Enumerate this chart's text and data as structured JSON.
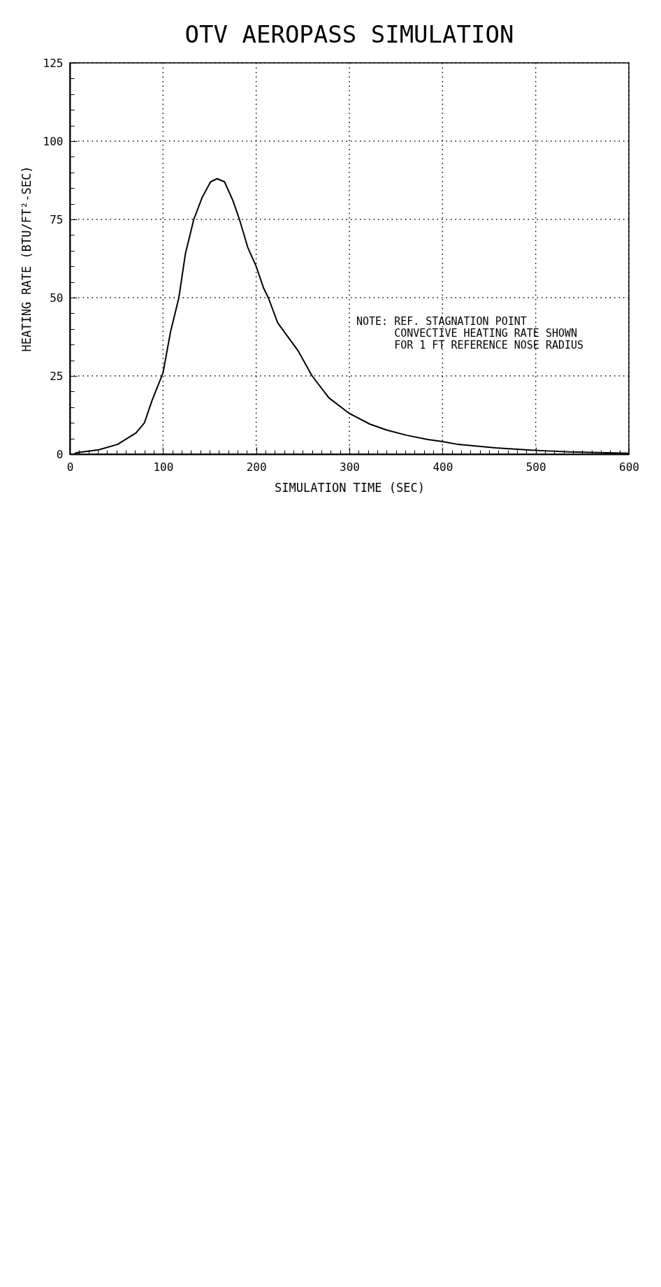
{
  "chart_data": {
    "type": "line",
    "title": "OTV AEROPASS SIMULATION",
    "xlabel": "SIMULATION TIME (SEC)",
    "ylabel": "HEATING RATE (BTU/FT²-SEC)",
    "annotations": [
      "NOTE: REF. STAGNATION POINT",
      "CONVECTIVE HEATING RATE SHOWN",
      "FOR 1 FT REFERENCE NOSE RADIUS"
    ],
    "xlim": [
      0,
      600
    ],
    "ylim": [
      0,
      125
    ],
    "xticks": [
      0,
      {
        "value": 10,
        "label": null
      },
      {
        "value": 20,
        "label": null
      },
      {
        "value": 30,
        "label": null
      },
      {
        "value": 40,
        "label": null
      },
      {
        "value": 50,
        "label": null
      },
      {
        "value": 60,
        "label": null
      },
      {
        "value": 70,
        "label": null
      },
      {
        "value": 80,
        "label": null
      },
      {
        "value": 90,
        "label": null
      },
      100,
      {
        "value": 110,
        "label": null
      },
      {
        "value": 120,
        "label": null
      },
      {
        "value": 130,
        "label": null
      },
      {
        "value": 140,
        "label": null
      },
      {
        "value": 150,
        "label": null
      },
      {
        "value": 160,
        "label": null
      },
      {
        "value": 170,
        "label": null
      },
      {
        "value": 180,
        "label": null
      },
      {
        "value": 190,
        "label": null
      },
      200,
      {
        "value": 210,
        "label": null
      },
      {
        "value": 220,
        "label": null
      },
      {
        "value": 230,
        "label": null
      },
      {
        "value": 240,
        "label": null
      },
      {
        "value": 250,
        "label": null
      },
      {
        "value": 260,
        "label": null
      },
      {
        "value": 270,
        "label": null
      },
      {
        "value": 280,
        "label": null
      },
      {
        "value": 290,
        "label": null
      },
      300,
      {
        "value": 310,
        "label": null
      },
      {
        "value": 320,
        "label": null
      },
      {
        "value": 330,
        "label": null
      },
      {
        "value": 340,
        "label": null
      },
      {
        "value": 350,
        "label": null
      },
      {
        "value": 360,
        "label": null
      },
      {
        "value": 370,
        "label": null
      },
      {
        "value": 380,
        "label": null
      },
      {
        "value": 390,
        "label": null
      },
      400,
      {
        "value": 410,
        "label": null
      },
      {
        "value": 420,
        "label": null
      },
      {
        "value": 430,
        "label": null
      },
      {
        "value": 440,
        "label": null
      },
      {
        "value": 450,
        "label": null
      },
      {
        "value": 460,
        "label": null
      },
      {
        "value": 470,
        "label": null
      },
      {
        "value": 480,
        "label": null
      },
      {
        "value": 490,
        "label": null
      },
      500,
      {
        "value": 510,
        "label": null
      },
      {
        "value": 520,
        "label": null
      },
      {
        "value": 530,
        "label": null
      },
      {
        "value": 540,
        "label": null
      },
      {
        "value": 550,
        "label": null
      },
      {
        "value": 560,
        "label": null
      },
      {
        "value": 570,
        "label": null
      },
      {
        "value": 580,
        "label": null
      },
      {
        "value": 590,
        "label": null
      },
      600
    ],
    "yticks": [
      0,
      {
        "value": 5,
        "label": null
      },
      {
        "value": 10,
        "label": null
      },
      {
        "value": 15,
        "label": null
      },
      {
        "value": 20,
        "label": null
      },
      25,
      {
        "value": 30,
        "label": null
      },
      {
        "value": 35,
        "label": null
      },
      {
        "value": 40,
        "label": null
      },
      {
        "value": 45,
        "label": null
      },
      50,
      {
        "value": 55,
        "label": null
      },
      {
        "value": 60,
        "label": null
      },
      {
        "value": 65,
        "label": null
      },
      {
        "value": 70,
        "label": null
      },
      75,
      {
        "value": 80,
        "label": null
      },
      {
        "value": 85,
        "label": null
      },
      {
        "value": 90,
        "label": null
      },
      {
        "value": 95,
        "label": null
      },
      100,
      {
        "value": 105,
        "label": null
      },
      {
        "value": 110,
        "label": null
      },
      {
        "value": 115,
        "label": null
      },
      {
        "value": 120,
        "label": null
      },
      125
    ],
    "grid": true,
    "line_style": "solid",
    "series": [
      {
        "color": "#000000",
        "x": [
          5,
          8,
          31,
          51,
          71,
          80,
          88,
          100,
          108,
          117,
          124,
          133,
          142,
          151,
          158,
          166,
          175,
          182,
          191,
          200,
          208,
          213,
          223,
          245,
          260,
          278,
          300,
          322,
          340,
          362,
          384,
          400,
          417,
          457,
          500,
          536,
          600
        ],
        "values": [
          0.2,
          0.5,
          1.4,
          3.1,
          6.8,
          10,
          17,
          26,
          39,
          50,
          64,
          75,
          82,
          87,
          88,
          87,
          81,
          75,
          66,
          60,
          53,
          50,
          42,
          33,
          25,
          18,
          13,
          9.6,
          7.7,
          6,
          4.7,
          4,
          3.1,
          2,
          1.2,
          0.7,
          0.3
        ]
      }
    ]
  }
}
